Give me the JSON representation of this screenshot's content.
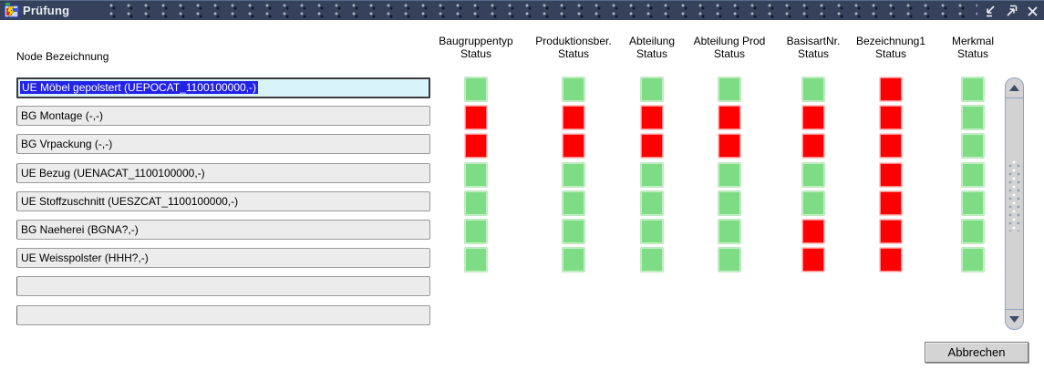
{
  "window": {
    "title": "Prüfung"
  },
  "labels": {
    "node_column_header": "Node Bezeichnung"
  },
  "status_columns": [
    {
      "name": "Baugruppentyp",
      "sub": "Status"
    },
    {
      "name": "Produktionsber.",
      "sub": "Status"
    },
    {
      "name": "Abteilung",
      "sub": "Status"
    },
    {
      "name": "Abteilung Prod",
      "sub": "Status"
    },
    {
      "name": "BasisartNr.",
      "sub": "Status"
    },
    {
      "name": "Bezeichnung1",
      "sub": "Status"
    },
    {
      "name": "Merkmal",
      "sub": "Status"
    }
  ],
  "rows": [
    {
      "label": "UE Möbel gepolstert (UEPOCAT_1100100000,-)",
      "selected": true,
      "statuses": [
        "green",
        "green",
        "green",
        "green",
        "green",
        "red",
        "green"
      ]
    },
    {
      "label": "BG Montage (-,-)",
      "selected": false,
      "statuses": [
        "red",
        "red",
        "red",
        "red",
        "red",
        "red",
        "green"
      ]
    },
    {
      "label": "BG Vrpackung (-,-)",
      "selected": false,
      "statuses": [
        "red",
        "red",
        "red",
        "red",
        "red",
        "red",
        "green"
      ]
    },
    {
      "label": "UE Bezug (UENACAT_1100100000,-)",
      "selected": false,
      "statuses": [
        "green",
        "green",
        "green",
        "green",
        "green",
        "red",
        "green"
      ]
    },
    {
      "label": "UE Stoffzuschnitt (UESZCAT_1100100000,-)",
      "selected": false,
      "statuses": [
        "green",
        "green",
        "green",
        "green",
        "green",
        "red",
        "green"
      ]
    },
    {
      "label": "BG Naeherei (BGNA?,-)",
      "selected": false,
      "statuses": [
        "green",
        "green",
        "green",
        "green",
        "red",
        "red",
        "green"
      ]
    },
    {
      "label": "UE Weisspolster (HHH?,-)",
      "selected": false,
      "statuses": [
        "green",
        "green",
        "green",
        "green",
        "red",
        "red",
        "green"
      ]
    },
    {
      "label": "",
      "selected": false,
      "statuses": []
    },
    {
      "label": "",
      "selected": false,
      "statuses": []
    }
  ],
  "buttons": {
    "cancel": "Abbrechen"
  },
  "colors": {
    "status_green": "#7edd84",
    "status_red": "#ff0000",
    "selection_blue": "#2323e8",
    "selected_field_bg": "#d9f4f8",
    "titlebar": "#36425c"
  }
}
